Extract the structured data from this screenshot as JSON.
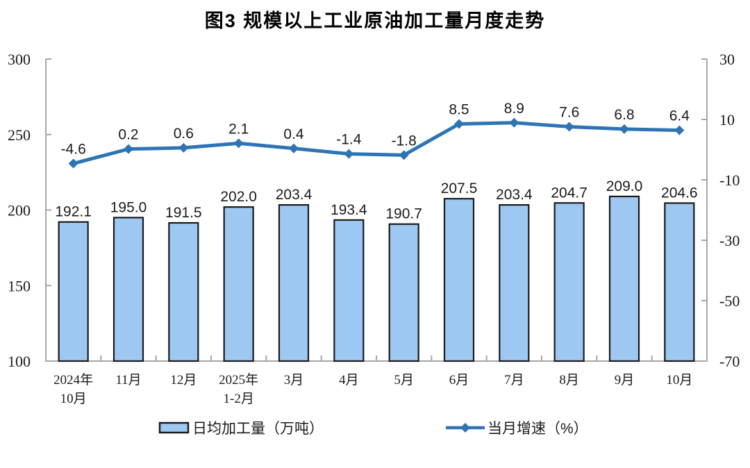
{
  "page": {
    "background": "#ffffff"
  },
  "chart_data": {
    "type": "combo",
    "title": "图3 规模以上工业原油加工量月度走势",
    "categories": [
      "2024年\n10月",
      "11月",
      "12月",
      "2025年\n1-2月",
      "3月",
      "4月",
      "5月",
      "6月",
      "7月",
      "8月",
      "9月",
      "10月"
    ],
    "series": [
      {
        "name": "日均加工量（万吨）",
        "type": "bar",
        "axis": "left",
        "values": [
          192.1,
          195.0,
          191.5,
          202.0,
          203.4,
          193.4,
          190.7,
          207.5,
          203.4,
          204.7,
          209.0,
          204.6
        ]
      },
      {
        "name": "当月增速（%）",
        "type": "line",
        "axis": "right",
        "values": [
          -4.6,
          0.2,
          0.6,
          2.1,
          0.4,
          -1.4,
          -1.8,
          8.5,
          8.9,
          7.6,
          6.8,
          6.4
        ]
      }
    ],
    "left_axis": {
      "min": 100,
      "max": 300,
      "ticks": [
        300,
        250,
        200,
        150,
        100
      ]
    },
    "right_axis": {
      "min": -70,
      "max": 30,
      "ticks": [
        30,
        10,
        -10,
        -30,
        -50,
        -70
      ]
    },
    "grid": false,
    "legend_position": "bottom",
    "colors": {
      "bar_fill": "#9DC8F2",
      "bar_border": "#1A1A1A",
      "line": "#2E74B5",
      "axis": "#A6A6A6",
      "label": "#1A1A1A"
    }
  }
}
